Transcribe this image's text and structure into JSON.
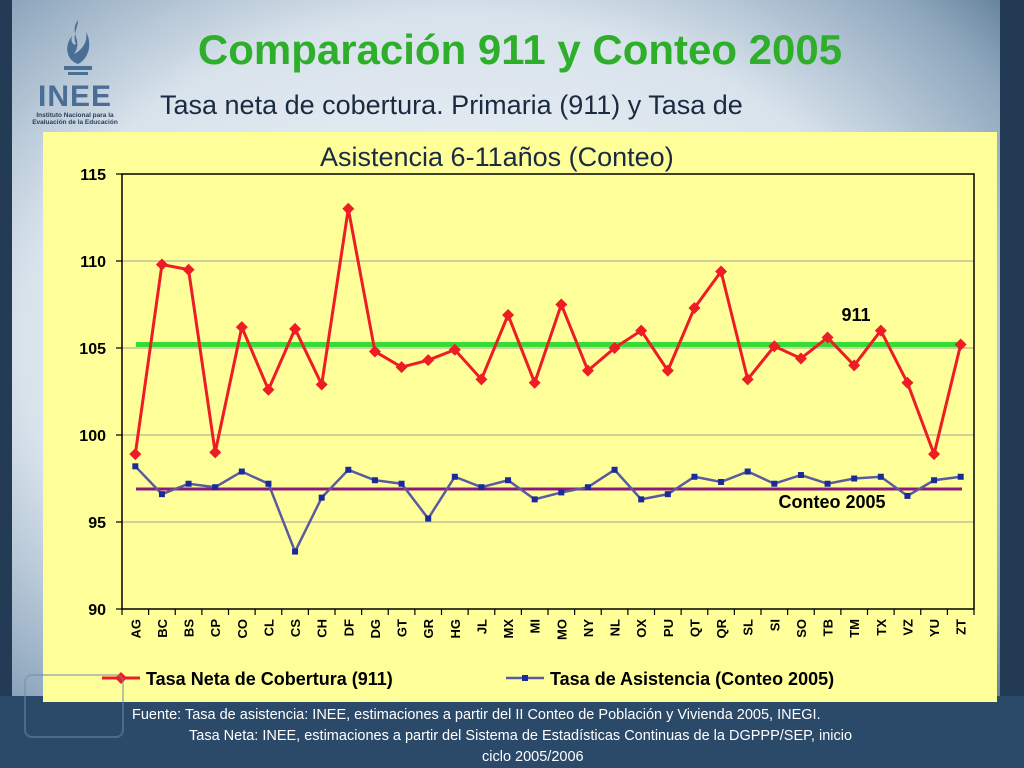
{
  "logo": {
    "text": "INEE",
    "subtitle": "Instituto Nacional para la Evaluación de la Educación"
  },
  "title": "Comparación 911 y  Conteo 2005",
  "subtitle_line1": "Tasa neta de cobertura. Primaria (911) y Tasa de",
  "subtitle_line2": "Asistencia 6-11años (Conteo)",
  "chart_data": {
    "type": "line",
    "categories": [
      "AG",
      "BC",
      "BS",
      "CP",
      "CO",
      "CL",
      "CS",
      "CH",
      "DF",
      "DG",
      "GT",
      "GR",
      "HG",
      "JL",
      "MX",
      "MI",
      "MO",
      "NY",
      "NL",
      "OX",
      "PU",
      "QT",
      "QR",
      "SL",
      "SI",
      "SO",
      "TB",
      "TM",
      "TX",
      "VZ",
      "YU",
      "ZT"
    ],
    "series": [
      {
        "name": "Tasa Neta de Cobertura (911)",
        "color": "#ee1c24",
        "marker": "diamond",
        "values": [
          98.9,
          109.8,
          109.5,
          99.0,
          106.2,
          102.6,
          106.1,
          102.9,
          113.0,
          104.8,
          103.9,
          104.3,
          104.9,
          103.2,
          106.9,
          103.0,
          107.5,
          103.7,
          105.0,
          106.0,
          103.7,
          107.3,
          109.4,
          103.2,
          105.1,
          104.4,
          105.6,
          104.0,
          106.0,
          103.0,
          98.9,
          105.2
        ]
      },
      {
        "name": "Tasa de Asistencia (Conteo 2005)",
        "color": "#5a5aa0",
        "marker": "square",
        "values": [
          98.2,
          96.6,
          97.2,
          97.0,
          97.9,
          97.2,
          93.3,
          96.4,
          98.0,
          97.4,
          97.2,
          95.2,
          97.6,
          97.0,
          97.4,
          96.3,
          96.7,
          97.0,
          98.0,
          96.3,
          96.6,
          97.6,
          97.3,
          97.9,
          97.2,
          97.7,
          97.2,
          97.5,
          97.6,
          96.5,
          97.4,
          97.6
        ]
      }
    ],
    "reference_lines": [
      {
        "label": "911",
        "value": 105.2,
        "color": "#33dd33"
      },
      {
        "label": "Conteo 2005",
        "value": 96.9,
        "color": "#8b1a7a"
      }
    ],
    "yticks": [
      90,
      95,
      100,
      105,
      110,
      115
    ],
    "ylim": [
      90,
      115
    ],
    "grid": true,
    "legend": "bottom"
  },
  "footnote": {
    "line1": "Fuente:  Tasa de asistencia: INEE, estimaciones a partir del II Conteo de Población y Vivienda 2005, INEGI.",
    "line2": "Tasa Neta:  INEE, estimaciones a partir del Sistema de Estadísticas Continuas de la DGPPP/SEP, inicio",
    "line3": "ciclo 2005/2006"
  }
}
